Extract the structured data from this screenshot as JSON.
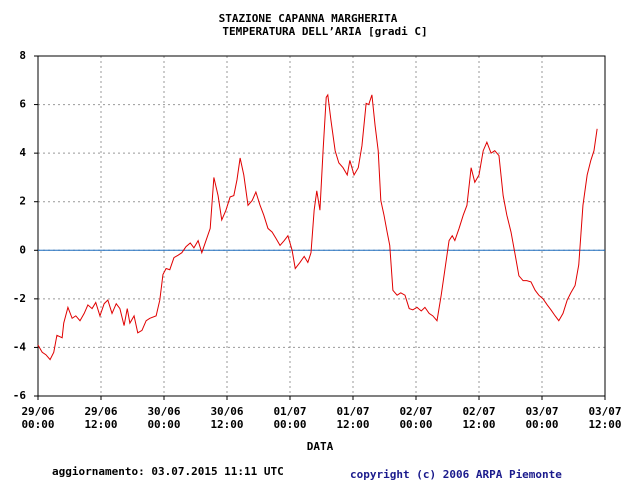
{
  "chart_data": {
    "type": "line",
    "title": "STAZIONE CAPANNA MARGHERITA",
    "subtitle": "TEMPERATURA DELL’ARIA [gradi C]",
    "x_label": "DATA",
    "footer_left": "aggiornamento: 03.07.2015 11:11 UTC",
    "footer_right": "copyright (c) 2006 ARPA Piemonte",
    "color": "#e00000",
    "reference_line": 0,
    "reference_color": "#1f6fc0",
    "grid": true,
    "xlim": [
      0,
      108
    ],
    "ylim": [
      -6,
      8
    ],
    "yticks": [
      -6,
      -4,
      -2,
      0,
      2,
      4,
      6,
      8
    ],
    "xticks": [
      {
        "value": 0,
        "label": "29/06\n00:00"
      },
      {
        "value": 12,
        "label": "29/06\n12:00"
      },
      {
        "value": 24,
        "label": "30/06\n00:00"
      },
      {
        "value": 36,
        "label": "30/06\n12:00"
      },
      {
        "value": 48,
        "label": "01/07\n00:00"
      },
      {
        "value": 60,
        "label": "01/07\n12:00"
      },
      {
        "value": 72,
        "label": "02/07\n00:00"
      },
      {
        "value": 84,
        "label": "02/07\n12:00"
      },
      {
        "value": 96,
        "label": "03/07\n00:00"
      },
      {
        "value": 108,
        "label": "03/07\n12:00"
      }
    ],
    "x": [
      0,
      0.8,
      1.5,
      2.3,
      3.0,
      3.6,
      4.6,
      4.9,
      5.7,
      6.5,
      7.2,
      8.0,
      8.8,
      9.5,
      10.3,
      11.0,
      11.8,
      12.6,
      13.3,
      14.1,
      14.9,
      15.6,
      16.4,
      17.0,
      17.5,
      18.3,
      19.0,
      19.8,
      20.6,
      21.3,
      22.5,
      23.2,
      23.8,
      24.4,
      25.1,
      25.9,
      26.7,
      27.4,
      28.2,
      29.0,
      29.7,
      30.5,
      31.2,
      32.0,
      32.8,
      33.5,
      34.3,
      35.0,
      35.8,
      36.6,
      37.3,
      37.9,
      38.5,
      39.2,
      40.0,
      40.8,
      41.5,
      42.3,
      43.0,
      43.8,
      44.6,
      45.3,
      46.1,
      46.9,
      47.6,
      48.4,
      49.0,
      49.9,
      50.7,
      51.4,
      52.0,
      52.6,
      53.1,
      53.7,
      54.3,
      54.9,
      55.2,
      55.8,
      56.6,
      57.3,
      58.1,
      58.9,
      59.4,
      60.2,
      61.0,
      61.7,
      62.5,
      63.0,
      63.6,
      64.2,
      64.8,
      65.3,
      65.9,
      66.5,
      67.0,
      67.6,
      68.4,
      69.1,
      69.9,
      70.7,
      71.4,
      72.2,
      73.0,
      73.7,
      74.5,
      75.2,
      76.0,
      76.8,
      77.5,
      78.3,
      78.9,
      79.4,
      80.2,
      81.0,
      81.7,
      82.5,
      83.2,
      84.0,
      84.8,
      85.5,
      86.3,
      87.0,
      87.8,
      88.6,
      89.3,
      90.1,
      90.9,
      91.6,
      92.4,
      93.1,
      93.9,
      94.7,
      95.4,
      96.2,
      97.0,
      97.7,
      98.5,
      99.2,
      100.0,
      100.8,
      101.5,
      102.3,
      103.0,
      103.8,
      104.6,
      105.3,
      105.9,
      106.5
    ],
    "values": [
      -3.9,
      -4.2,
      -4.3,
      -4.5,
      -4.2,
      -3.5,
      -3.6,
      -3.0,
      -2.35,
      -2.8,
      -2.7,
      -2.9,
      -2.6,
      -2.25,
      -2.4,
      -2.15,
      -2.7,
      -2.2,
      -2.05,
      -2.6,
      -2.2,
      -2.4,
      -3.1,
      -2.4,
      -3.0,
      -2.7,
      -3.4,
      -3.3,
      -2.9,
      -2.8,
      -2.7,
      -2.05,
      -1.0,
      -0.75,
      -0.8,
      -0.3,
      -0.2,
      -0.1,
      0.15,
      0.3,
      0.1,
      0.4,
      -0.1,
      0.4,
      0.9,
      3.0,
      2.25,
      1.25,
      1.65,
      2.2,
      2.25,
      2.9,
      3.8,
      3.1,
      1.85,
      2.05,
      2.4,
      1.85,
      1.45,
      0.9,
      0.75,
      0.5,
      0.2,
      0.4,
      0.6,
      0,
      -0.75,
      -0.5,
      -0.25,
      -0.5,
      -0.1,
      1.65,
      2.45,
      1.65,
      4.1,
      6.3,
      6.4,
      5.35,
      4.1,
      3.6,
      3.4,
      3.1,
      3.7,
      3.1,
      3.4,
      4.3,
      6.05,
      6.0,
      6.4,
      5.15,
      4.1,
      2.05,
      1.45,
      0.75,
      0.2,
      -1.65,
      -1.85,
      -1.75,
      -1.85,
      -2.4,
      -2.45,
      -2.35,
      -2.5,
      -2.35,
      -2.6,
      -2.7,
      -2.9,
      -1.85,
      -0.8,
      0.4,
      0.6,
      0.4,
      0.9,
      1.45,
      1.85,
      3.4,
      2.8,
      3.1,
      4.1,
      4.45,
      4.0,
      4.1,
      3.9,
      2.25,
      1.45,
      0.75,
      -0.2,
      -1.05,
      -1.25,
      -1.25,
      -1.3,
      -1.65,
      -1.85,
      -2.0,
      -2.25,
      -2.45,
      -2.7,
      -2.9,
      -2.6,
      -2.05,
      -1.75,
      -1.45,
      -0.6,
      1.85,
      3.1,
      3.7,
      4.1,
      5.0
    ]
  }
}
